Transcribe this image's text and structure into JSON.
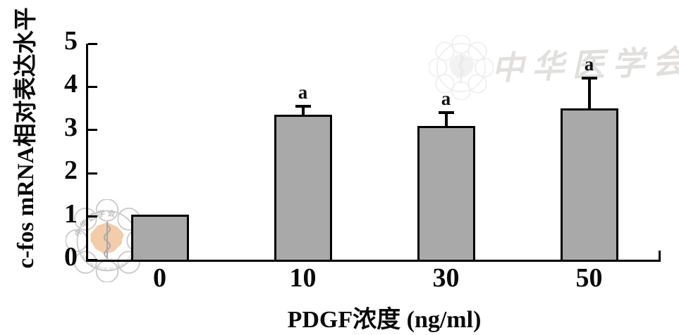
{
  "chart_data": {
    "type": "bar",
    "title": "",
    "categories": [
      "0",
      "10",
      "30",
      "50"
    ],
    "values": [
      1.05,
      3.35,
      3.1,
      3.5
    ],
    "errors_plus": [
      0,
      0.2,
      0.3,
      0.7
    ],
    "sig_labels": [
      "",
      "a",
      "a",
      "a"
    ],
    "xlabel": "PDGF浓度 (ng/ml)",
    "ylabel": "c-fos mRNA相对表达水平",
    "ylim": [
      0,
      5
    ],
    "yticks": [
      0,
      1,
      2,
      3,
      4,
      5
    ],
    "grid": false,
    "legend": null,
    "bar_color": "#a9a9a9",
    "bar_border_color": "#000000",
    "axis_color": "#000000"
  },
  "watermarks": {
    "top_right_text": "中华医学会",
    "logo": {
      "org_cn": "中华医学会",
      "org_en_top": "CHINESE",
      "org_en_bottom": "MEDICAL ASSOCIATION",
      "year": "1915",
      "map_color": "#f2c49c",
      "ring_color": "#c3c3c3",
      "snake_color": "#9a9a9a",
      "text_color": "#b3b3b3"
    }
  }
}
